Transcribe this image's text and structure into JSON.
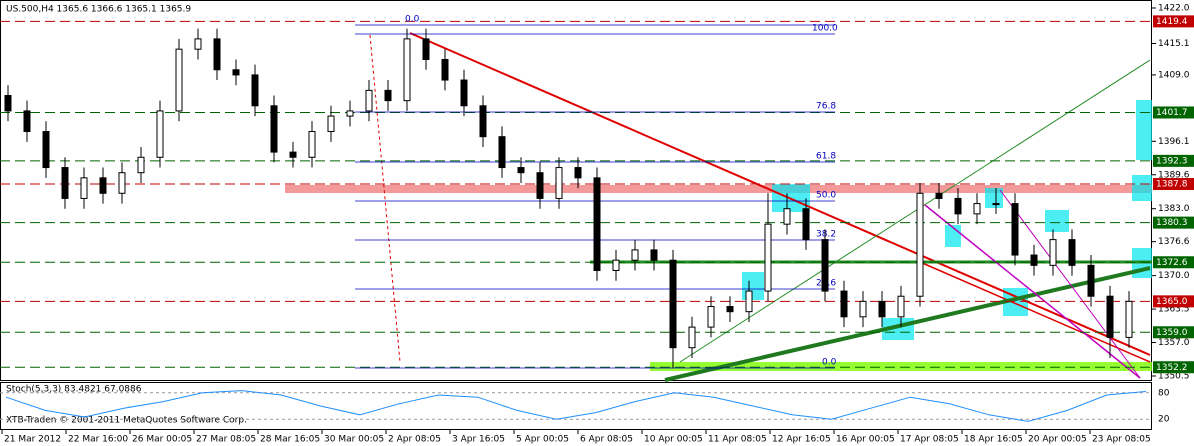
{
  "chart_data": {
    "type": "candlestick",
    "title": "US.500,H4  1365.6 1366.6 1365.1 1365.9",
    "ylim": [
      1350.5,
      1422.0
    ],
    "yticks": [
      {
        "value": 1422.0,
        "label": "1422.0"
      },
      1415.1,
      {
        "value": 1409.0,
        "label": "1409.0"
      },
      1396.1,
      1389.6,
      {
        "value": 1383.0,
        "label": "1383.0"
      },
      1376.6,
      {
        "value": 1370.0,
        "label": "1370.0"
      },
      1363.5,
      {
        "value": 1357.0,
        "label": "1357.0"
      },
      1350.5
    ],
    "levels": [
      {
        "value": 1419.4,
        "color": "#c00000"
      },
      {
        "value": 1401.7,
        "color": "#006400"
      },
      {
        "value": 1392.3,
        "color": "#006400"
      },
      {
        "value": 1387.8,
        "color": "#c00000"
      },
      {
        "value": 1380.3,
        "color": "#006400"
      },
      {
        "value": 1372.6,
        "color": "#006400"
      },
      {
        "value": 1365.0,
        "label": "1365.0",
        "color": "#c00000"
      },
      {
        "value": 1359.0,
        "label": "1359.0",
        "color": "#006400"
      },
      {
        "value": 1352.2,
        "color": "#006400"
      }
    ],
    "fib_labels": [
      "0.0",
      "100.0",
      "76.8",
      "61.8",
      "50.0",
      "38.2",
      "23.6",
      "0.0"
    ],
    "x_labels": [
      "21 Mar 2012",
      "22 Mar 16:00",
      "26 Mar 00:05",
      "27 Mar 08:05",
      "28 Mar 16:05",
      "30 Mar 00:05",
      "2 Apr 08:05",
      "3 Apr 16:05",
      "5 Apr 00:05",
      "6 Apr 08:05",
      "10 Apr 00:05",
      "11 Apr 08:05",
      "12 Apr 16:05",
      "16 Apr 00:05",
      "17 Apr 08:05",
      "18 Apr 16:05",
      "20 Apr 00:05",
      "23 Apr 08:05"
    ],
    "open": [
      1405,
      1402,
      1398,
      1391,
      1385,
      1389,
      1386,
      1390,
      1393,
      1402,
      1414,
      1416,
      1410,
      1409,
      1403,
      1394,
      1393,
      1398,
      1401,
      1402,
      1406,
      1404,
      1416,
      1412,
      1408,
      1403,
      1397,
      1391,
      1390,
      1385,
      1391,
      1389,
      1371,
      1373,
      1375,
      1373,
      1356,
      1360,
      1364,
      1363,
      1367,
      1380,
      1383,
      1377,
      1367,
      1362,
      1365,
      1362,
      1366,
      1386,
      1385,
      1382,
      1384,
      1384,
      1374,
      1372,
      1377,
      1372,
      1366,
      1358
    ],
    "high": [
      1407,
      1404,
      1400,
      1393,
      1391,
      1391,
      1392,
      1395,
      1404,
      1416,
      1418,
      1418,
      1412,
      1411,
      1405,
      1396,
      1400,
      1403,
      1404,
      1408,
      1408,
      1418,
      1418,
      1414,
      1410,
      1405,
      1399,
      1393,
      1392,
      1393,
      1393,
      1391,
      1375,
      1377,
      1377,
      1375,
      1362,
      1366,
      1366,
      1369,
      1386,
      1386,
      1385,
      1379,
      1369,
      1367,
      1367,
      1368,
      1388,
      1388,
      1387,
      1386,
      1387,
      1386,
      1376,
      1379,
      1379,
      1374,
      1368,
      1367
    ],
    "low": [
      1400,
      1396,
      1389,
      1383,
      1383,
      1384,
      1384,
      1388,
      1391,
      1400,
      1412,
      1408,
      1407,
      1401,
      1392,
      1391,
      1391,
      1396,
      1399,
      1400,
      1402,
      1402,
      1410,
      1406,
      1401,
      1395,
      1389,
      1388,
      1383,
      1383,
      1387,
      1369,
      1369,
      1371,
      1371,
      1352,
      1354,
      1358,
      1361,
      1361,
      1365,
      1378,
      1375,
      1365,
      1360,
      1360,
      1360,
      1360,
      1364,
      1383,
      1380,
      1380,
      1382,
      1372,
      1370,
      1370,
      1370,
      1364,
      1354,
      1356
    ],
    "close": [
      1402,
      1398,
      1391,
      1385,
      1389,
      1386,
      1390,
      1393,
      1402,
      1414,
      1416,
      1410,
      1409,
      1403,
      1394,
      1393,
      1398,
      1401,
      1402,
      1406,
      1404,
      1416,
      1412,
      1408,
      1403,
      1397,
      1391,
      1390,
      1385,
      1391,
      1389,
      1371,
      1373,
      1375,
      1373,
      1356,
      1360,
      1364,
      1363,
      1367,
      1380,
      1383,
      1377,
      1367,
      1362,
      1365,
      1362,
      1366,
      1386,
      1385,
      1382,
      1384,
      1384,
      1374,
      1372,
      1377,
      1372,
      1366,
      1358,
      1365
    ],
    "stoch": {
      "label": "Stoch(5,3,3) 83.4821 67.0886",
      "ylim": [
        0,
        100
      ],
      "yticks": [
        80,
        20
      ],
      "values": [
        70,
        40,
        25,
        45,
        60,
        80,
        85,
        75,
        50,
        30,
        55,
        75,
        70,
        40,
        20,
        35,
        60,
        80,
        70,
        50,
        30,
        20,
        45,
        70,
        55,
        30,
        15,
        40,
        75,
        83
      ],
      "color": "#1e90ff"
    },
    "copyright": "XTB-Traden © 2001-2011 MetaQuotes Software Corp."
  }
}
